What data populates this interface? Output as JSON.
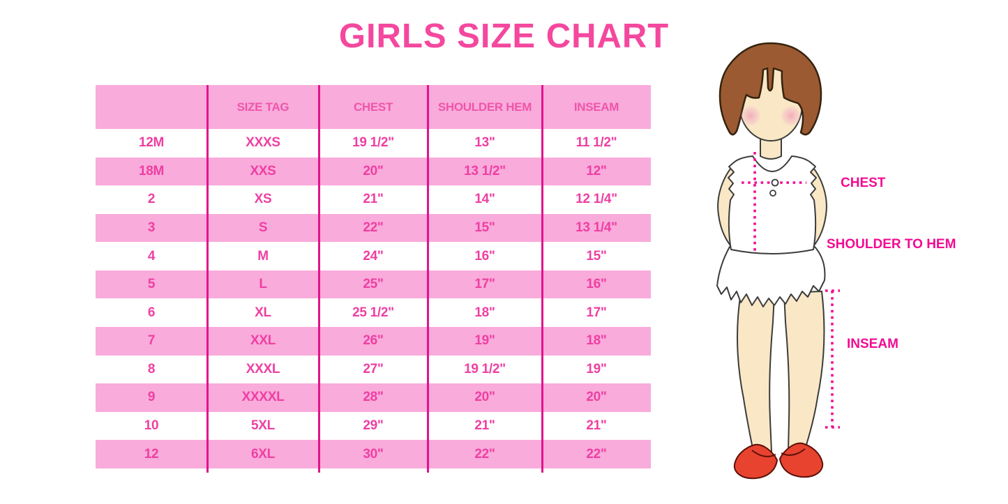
{
  "title": "GIRLS SIZE CHART",
  "chart_data": {
    "type": "table",
    "title": "GIRLS SIZE CHART",
    "columns": [
      "",
      "SIZE TAG",
      "CHEST",
      "SHOULDER HEM",
      "INSEAM"
    ],
    "rows": [
      [
        "12M",
        "XXXS",
        "19 1/2\"",
        "13\"",
        "11 1/2\""
      ],
      [
        "18M",
        "XXS",
        "20\"",
        "13 1/2\"",
        "12\""
      ],
      [
        "2",
        "XS",
        "21\"",
        "14\"",
        "12 1/4\""
      ],
      [
        "3",
        "S",
        "22\"",
        "15\"",
        "13 1/4\""
      ],
      [
        "4",
        "M",
        "24\"",
        "16\"",
        "15\""
      ],
      [
        "5",
        "L",
        "25\"",
        "17\"",
        "16\""
      ],
      [
        "6",
        "XL",
        "25 1/2\"",
        "18\"",
        "17\""
      ],
      [
        "7",
        "XXL",
        "26\"",
        "19\"",
        "18\""
      ],
      [
        "8",
        "XXXL",
        "27\"",
        "19 1/2\"",
        "19\""
      ],
      [
        "9",
        "XXXXL",
        "28\"",
        "20\"",
        "20\""
      ],
      [
        "10",
        "5XL",
        "29\"",
        "21\"",
        "21\""
      ],
      [
        "12",
        "6XL",
        "30\"",
        "22\"",
        "22\""
      ]
    ],
    "layout": {
      "row_stripe_colors": [
        "#FFFFFF",
        "#F9ABDB"
      ],
      "header_background": "#F9ABDB",
      "gridlines": "vertical-only"
    }
  },
  "figure": {
    "description": "girl-measurement-illustration",
    "labels": {
      "chest": "CHEST",
      "shoulder_to_hem": "SHOULDER TO HEM",
      "inseam": "INSEAM"
    }
  },
  "colors": {
    "title_pink": "#F4489F",
    "row_pink": "#F9ABDB",
    "cell_text_pink": "#EE3FA2",
    "grid_line_magenta": "#E1138C",
    "label_magenta": "#F10C92",
    "dotted_line_magenta": "#F20D93",
    "hair_brown": "#9C5A33",
    "skin": "#FAE7C6",
    "shoe_red": "#E8432F"
  }
}
